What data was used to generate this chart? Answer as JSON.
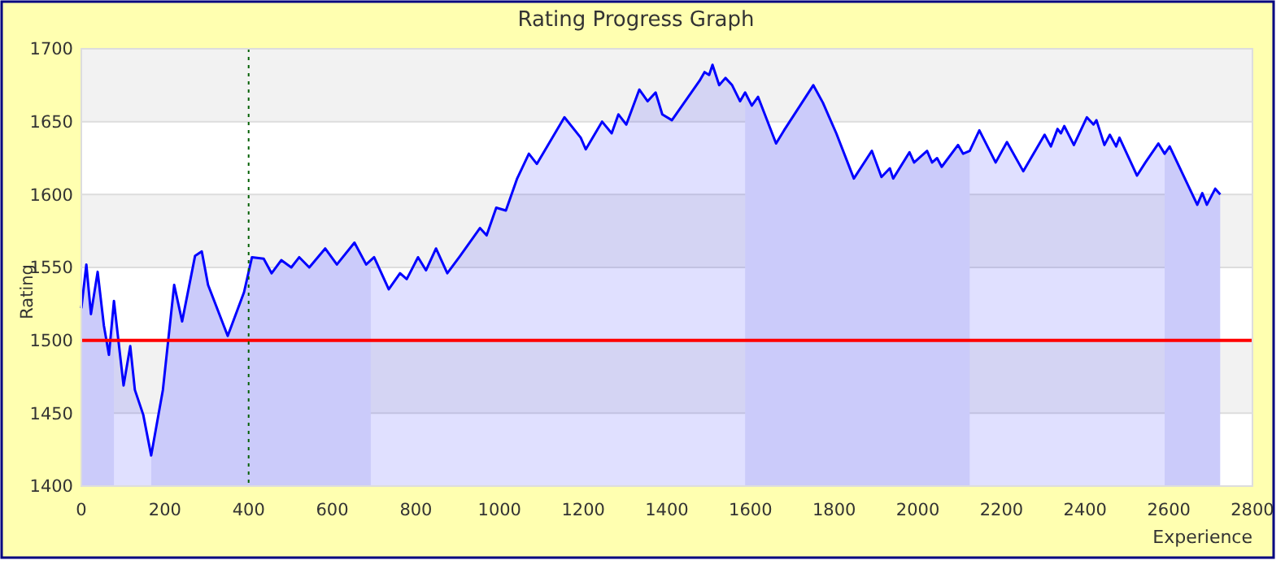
{
  "chart_data": {
    "type": "area",
    "title": "Rating Progress Graph",
    "xlabel": "Experience",
    "ylabel": "Rating",
    "xlim": [
      0,
      2800
    ],
    "xticks": [
      0,
      200,
      400,
      600,
      800,
      1000,
      1200,
      1400,
      1600,
      1800,
      2000,
      2200,
      2400,
      2600,
      2800
    ],
    "ylim": [
      1400,
      1700
    ],
    "yticks": [
      1400,
      1450,
      1500,
      1550,
      1600,
      1650,
      1700
    ],
    "grid": "y",
    "legend": false,
    "series": [
      {
        "color": "#0000ff",
        "x": [
          0,
          12,
          23,
          39,
          54,
          66,
          78,
          89,
          101,
          117,
          128,
          148,
          167,
          195,
          222,
          241,
          272,
          288,
          303,
          350,
          389,
          408,
          436,
          455,
          478,
          502,
          521,
          545,
          583,
          611,
          653,
          681,
          700,
          735,
          762,
          778,
          805,
          824,
          848,
          875,
          906,
          953,
          969,
          992,
          1015,
          1042,
          1070,
          1089,
          1155,
          1194,
          1206,
          1245,
          1268,
          1284,
          1303,
          1334,
          1354,
          1373,
          1389,
          1412,
          1478,
          1490,
          1501,
          1509,
          1525,
          1540,
          1556,
          1575,
          1587,
          1603,
          1618,
          1661,
          1680,
          1750,
          1773,
          1805,
          1847,
          1890,
          1913,
          1933,
          1941,
          1980,
          1991,
          2022,
          2034,
          2046,
          2057,
          2096,
          2108,
          2124,
          2147,
          2186,
          2213,
          2252,
          2303,
          2318,
          2334,
          2342,
          2350,
          2373,
          2404,
          2420,
          2427,
          2446,
          2459,
          2474,
          2482,
          2524,
          2544,
          2575,
          2590,
          2602,
          2668,
          2680,
          2691,
          2711,
          2723
        ],
        "values": [
          1522,
          1552,
          1518,
          1547,
          1510,
          1490,
          1527,
          1499,
          1469,
          1496,
          1466,
          1449,
          1421,
          1466,
          1538,
          1513,
          1558,
          1561,
          1538,
          1503,
          1533,
          1557,
          1556,
          1546,
          1555,
          1550,
          1557,
          1550,
          1563,
          1552,
          1567,
          1552,
          1557,
          1535,
          1546,
          1542,
          1557,
          1548,
          1563,
          1546,
          1558,
          1577,
          1572,
          1591,
          1589,
          1611,
          1628,
          1621,
          1653,
          1639,
          1631,
          1650,
          1642,
          1655,
          1648,
          1672,
          1664,
          1670,
          1655,
          1651,
          1678,
          1684,
          1682,
          1689,
          1675,
          1680,
          1675,
          1664,
          1670,
          1661,
          1667,
          1635,
          1644,
          1675,
          1663,
          1642,
          1611,
          1630,
          1612,
          1618,
          1611,
          1629,
          1622,
          1630,
          1622,
          1625,
          1619,
          1634,
          1628,
          1630,
          1644,
          1622,
          1636,
          1616,
          1641,
          1633,
          1645,
          1642,
          1647,
          1634,
          1653,
          1648,
          1651,
          1634,
          1641,
          1633,
          1639,
          1613,
          1622,
          1635,
          1628,
          1633,
          1593,
          1601,
          1593,
          1604,
          1600
        ]
      }
    ],
    "ref_lines": [
      {
        "axis": "y",
        "value": 1500,
        "color": "#ff0000",
        "line_style": "solid"
      },
      {
        "axis": "x",
        "value": 400,
        "color": "#006000",
        "line_style": "dotted"
      }
    ],
    "bands": [
      {
        "axis": "x",
        "from": 0,
        "to": 78,
        "color": "#e8e8fa"
      },
      {
        "axis": "x",
        "from": 167,
        "to": 692,
        "color": "#e8e8fa"
      },
      {
        "axis": "x",
        "from": 1587,
        "to": 2124,
        "color": "#e8e8fa"
      },
      {
        "axis": "x",
        "from": 2590,
        "to": 2723,
        "color": "#e8e8fa"
      }
    ]
  }
}
